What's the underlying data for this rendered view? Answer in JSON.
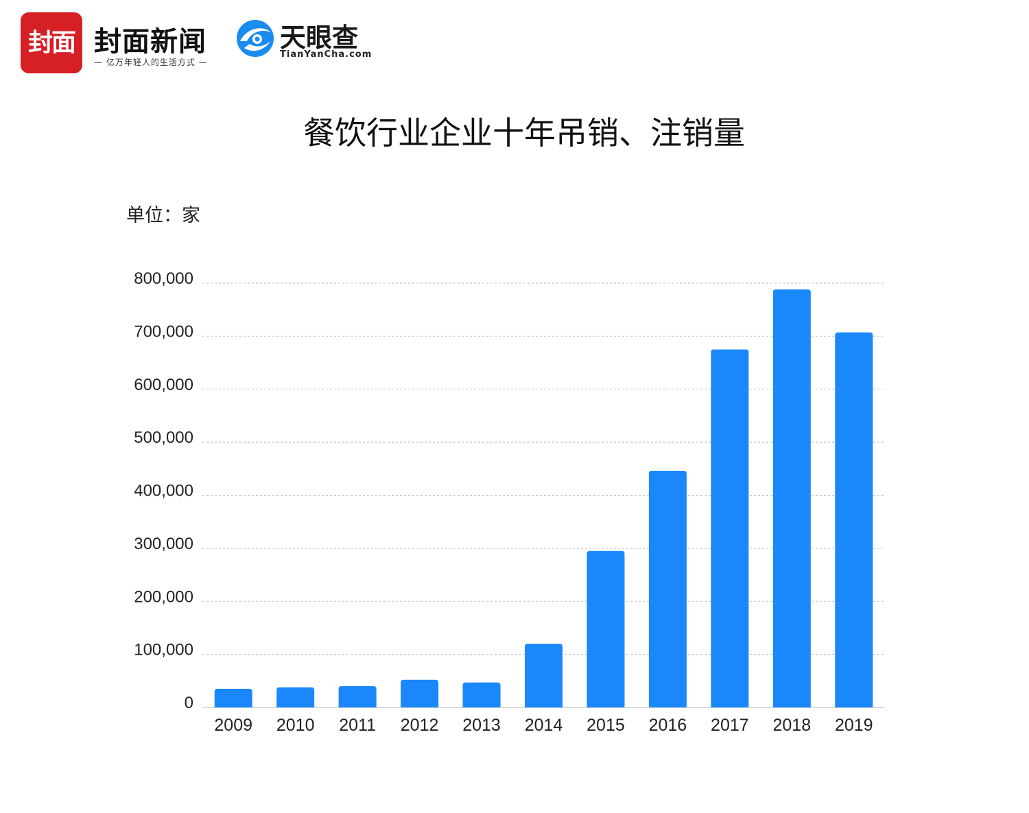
{
  "branding": {
    "fengmian_logo_text": "封面",
    "fengmian_name": "封面新闻",
    "fengmian_slogan": "— 亿万年轻人的生活方式 —",
    "tianyancha_name": "天眼查",
    "tianyancha_domain": "TianYanCha.com",
    "colors": {
      "fengmian_red": "#d71f26",
      "tianyancha_blue": "#1a8cf0"
    }
  },
  "chart_data": {
    "type": "bar",
    "title": "餐饮行业企业十年吊销、注销量",
    "unit_label": "单位：家",
    "categories": [
      "2009",
      "2010",
      "2011",
      "2012",
      "2013",
      "2014",
      "2015",
      "2016",
      "2017",
      "2018",
      "2019"
    ],
    "values": [
      35000,
      38000,
      40000,
      52000,
      47000,
      120000,
      295000,
      446000,
      675000,
      788000,
      707000
    ],
    "ylim": [
      0,
      800000
    ],
    "yticks": [
      0,
      100000,
      200000,
      300000,
      400000,
      500000,
      600000,
      700000,
      800000
    ],
    "ytick_labels": [
      "0",
      "100,000",
      "200,000",
      "300,000",
      "400,000",
      "500,000",
      "600,000",
      "700,000",
      "800,000"
    ],
    "grid": true,
    "bar_color": "#1a88fb"
  }
}
